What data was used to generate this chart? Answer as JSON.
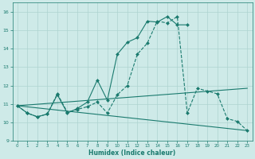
{
  "title": "",
  "xlabel": "Humidex (Indice chaleur)",
  "ylabel": "",
  "xlim": [
    -0.5,
    23.5
  ],
  "ylim": [
    9,
    16.5
  ],
  "yticks": [
    9,
    10,
    11,
    12,
    13,
    14,
    15,
    16
  ],
  "xticks": [
    0,
    1,
    2,
    3,
    4,
    5,
    6,
    7,
    8,
    9,
    10,
    11,
    12,
    13,
    14,
    15,
    16,
    17,
    18,
    19,
    20,
    21,
    22,
    23
  ],
  "background_color": "#ceeae8",
  "grid_color": "#add4d0",
  "line_color": "#1a7a6e",
  "series": [
    {
      "x": [
        0,
        1,
        2,
        3,
        4,
        5,
        6,
        7,
        8,
        9,
        10,
        11,
        12,
        13,
        14,
        15,
        16,
        17
      ],
      "y": [
        10.9,
        10.5,
        10.3,
        10.45,
        11.5,
        10.5,
        10.75,
        11.1,
        12.3,
        11.2,
        13.7,
        14.35,
        14.6,
        15.5,
        15.45,
        15.75,
        15.3,
        15.3
      ],
      "style": "-",
      "marker": "D",
      "markersize": 2.0
    },
    {
      "x": [
        0,
        23
      ],
      "y": [
        10.9,
        9.55
      ],
      "style": "-",
      "marker": null,
      "markersize": 0
    },
    {
      "x": [
        0,
        23
      ],
      "y": [
        10.9,
        11.85
      ],
      "style": "-",
      "marker": null,
      "markersize": 0
    },
    {
      "x": [
        0,
        1,
        2,
        3,
        4,
        5,
        6,
        7,
        8,
        9,
        10,
        11,
        12,
        13,
        14,
        15,
        16,
        17,
        18,
        19,
        20,
        21,
        22,
        23
      ],
      "y": [
        10.9,
        10.5,
        10.3,
        10.45,
        11.55,
        10.55,
        10.7,
        10.85,
        11.1,
        10.5,
        11.5,
        12.0,
        13.7,
        14.3,
        15.5,
        15.4,
        15.75,
        10.5,
        11.85,
        11.7,
        11.55,
        10.2,
        10.05,
        9.55
      ],
      "style": "--",
      "marker": "D",
      "markersize": 2.0
    }
  ]
}
